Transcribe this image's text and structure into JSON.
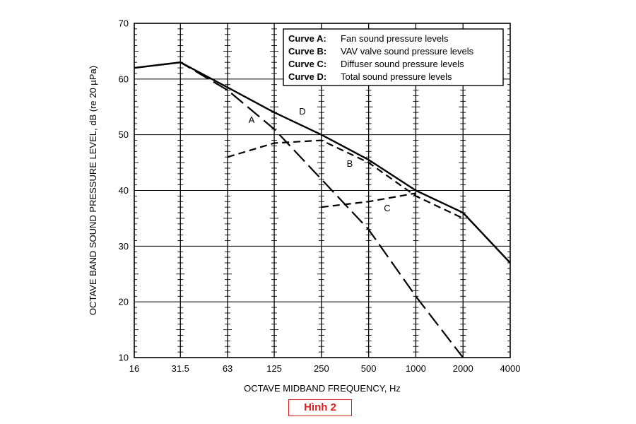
{
  "chart_data": {
    "type": "line",
    "xlabel": "OCTAVE MIDBAND FREQUENCY, Hz",
    "ylabel": "OCTAVE BAND SOUND PRESSURE LEVEL, dB (re 20 µPa)",
    "x_ticks": [
      "16",
      "31.5",
      "63",
      "125",
      "250",
      "500",
      "1000",
      "2000",
      "4000"
    ],
    "y_ticks": [
      10,
      20,
      30,
      40,
      50,
      60,
      70
    ],
    "xlim": [
      "16",
      "4000"
    ],
    "ylim": [
      10,
      70
    ],
    "x_scale": "log",
    "grid": true,
    "legend_position": "top-right",
    "legend": [
      {
        "key": "Curve A:",
        "text": "Fan sound pressure levels"
      },
      {
        "key": "Curve B:",
        "text": "VAV valve sound pressure levels"
      },
      {
        "key": "Curve C:",
        "text": "Diffuser sound pressure levels"
      },
      {
        "key": "Curve D:",
        "text": "Total sound pressure levels"
      }
    ],
    "series": [
      {
        "label": "A",
        "style": "long-dash",
        "points": [
          [
            16,
            62
          ],
          [
            31.5,
            63
          ],
          [
            63,
            58
          ],
          [
            125,
            51
          ],
          [
            250,
            42
          ],
          [
            500,
            33
          ],
          [
            1000,
            21
          ],
          [
            2000,
            10
          ]
        ]
      },
      {
        "label": "B",
        "style": "dash",
        "points": [
          [
            63,
            46
          ],
          [
            125,
            48.5
          ],
          [
            250,
            49
          ],
          [
            500,
            45
          ],
          [
            1000,
            39
          ],
          [
            2000,
            35
          ]
        ]
      },
      {
        "label": "C",
        "style": "dash",
        "points": [
          [
            250,
            37
          ],
          [
            500,
            38
          ],
          [
            1000,
            39.5
          ]
        ]
      },
      {
        "label": "D",
        "style": "solid",
        "points": [
          [
            16,
            62
          ],
          [
            31.5,
            63
          ],
          [
            63,
            58.5
          ],
          [
            125,
            54
          ],
          [
            250,
            50
          ],
          [
            500,
            45.5
          ],
          [
            1000,
            40
          ],
          [
            2000,
            36
          ],
          [
            4000,
            27
          ]
        ]
      }
    ]
  },
  "caption": "Hình 2"
}
